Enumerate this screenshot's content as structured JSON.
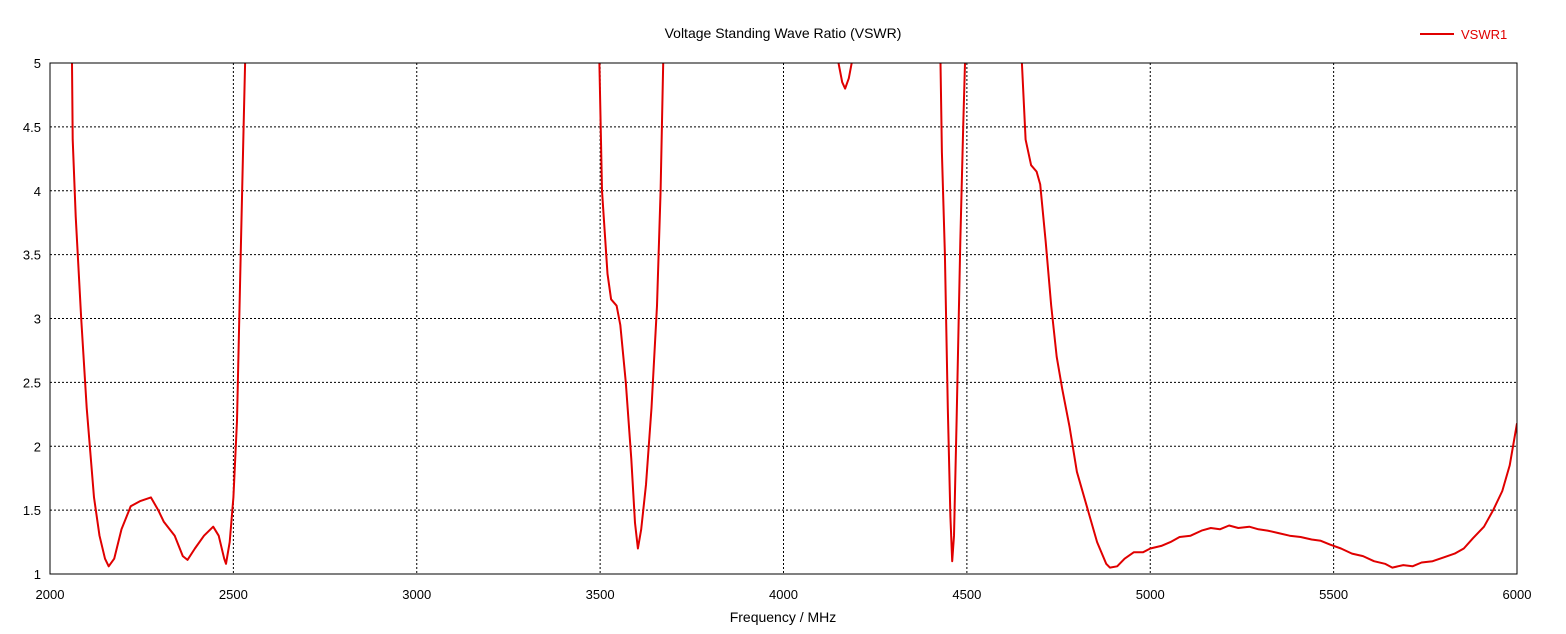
{
  "chart_data": {
    "type": "line",
    "title": "Voltage Standing Wave Ratio (VSWR)",
    "xlabel": "Frequency / MHz",
    "ylabel": "",
    "xlim": [
      2000,
      6000
    ],
    "ylim": [
      1,
      5
    ],
    "xticks": [
      2000,
      2500,
      3000,
      3500,
      4000,
      4500,
      5000,
      5500,
      6000
    ],
    "yticks": [
      1,
      1.5,
      2,
      2.5,
      3,
      3.5,
      4,
      4.5,
      5
    ],
    "xtick_labels": [
      "2000",
      "2500",
      "3000",
      "3500",
      "4000",
      "4500",
      "5000",
      "5500",
      "6000"
    ],
    "ytick_labels": [
      "1",
      "1.5",
      "2",
      "2.5",
      "3",
      "3.5",
      "4",
      "4.5",
      "5"
    ],
    "grid": true,
    "legend_position": "top-right",
    "series": [
      {
        "name": "VSWR1",
        "color": "#e00000",
        "segments": [
          [
            [
              2060,
              5
            ],
            [
              2062,
              4.4
            ],
            [
              2070,
              3.8
            ],
            [
              2085,
              3.0
            ],
            [
              2100,
              2.3
            ],
            [
              2120,
              1.6
            ],
            [
              2135,
              1.3
            ],
            [
              2150,
              1.12
            ],
            [
              2160,
              1.06
            ],
            [
              2175,
              1.12
            ],
            [
              2195,
              1.35
            ],
            [
              2220,
              1.53
            ],
            [
              2245,
              1.57
            ],
            [
              2275,
              1.6
            ],
            [
              2295,
              1.5
            ],
            [
              2310,
              1.41
            ],
            [
              2340,
              1.3
            ],
            [
              2362,
              1.14
            ],
            [
              2375,
              1.11
            ],
            [
              2395,
              1.2
            ],
            [
              2420,
              1.3
            ],
            [
              2445,
              1.37
            ],
            [
              2460,
              1.3
            ],
            [
              2475,
              1.12
            ],
            [
              2480,
              1.08
            ],
            [
              2490,
              1.25
            ],
            [
              2500,
              1.6
            ],
            [
              2510,
              2.2
            ],
            [
              2520,
              3.5
            ],
            [
              2528,
              4.5
            ],
            [
              2532,
              5
            ]
          ],
          [
            [
              3498,
              5
            ],
            [
              3505,
              4.0
            ],
            [
              3520,
              3.35
            ],
            [
              3530,
              3.15
            ],
            [
              3545,
              3.1
            ],
            [
              3555,
              2.95
            ],
            [
              3570,
              2.5
            ],
            [
              3585,
              1.9
            ],
            [
              3595,
              1.4
            ],
            [
              3603,
              1.2
            ],
            [
              3612,
              1.35
            ],
            [
              3625,
              1.7
            ],
            [
              3640,
              2.3
            ],
            [
              3655,
              3.1
            ],
            [
              3665,
              4.0
            ],
            [
              3672,
              5
            ]
          ],
          [
            [
              4150,
              5
            ],
            [
              4160,
              4.85
            ],
            [
              4168,
              4.8
            ],
            [
              4178,
              4.88
            ],
            [
              4186,
              5
            ]
          ],
          [
            [
              4428,
              5
            ],
            [
              4432,
              4.3
            ],
            [
              4440,
              3.5
            ],
            [
              4448,
              2.3
            ],
            [
              4455,
              1.45
            ],
            [
              4460,
              1.1
            ],
            [
              4465,
              1.3
            ],
            [
              4472,
              2.2
            ],
            [
              4482,
              3.6
            ],
            [
              4490,
              4.5
            ],
            [
              4495,
              5
            ]
          ],
          [
            [
              4650,
              5
            ],
            [
              4660,
              4.4
            ],
            [
              4675,
              4.2
            ],
            [
              4690,
              4.15
            ],
            [
              4700,
              4.05
            ],
            [
              4715,
              3.6
            ],
            [
              4730,
              3.1
            ],
            [
              4745,
              2.7
            ],
            [
              4760,
              2.45
            ],
            [
              4780,
              2.15
            ],
            [
              4800,
              1.8
            ],
            [
              4830,
              1.5
            ],
            [
              4855,
              1.25
            ],
            [
              4880,
              1.08
            ],
            [
              4890,
              1.05
            ],
            [
              4910,
              1.06
            ],
            [
              4930,
              1.12
            ],
            [
              4955,
              1.17
            ],
            [
              4980,
              1.17
            ],
            [
              5000,
              1.2
            ],
            [
              5030,
              1.22
            ],
            [
              5055,
              1.25
            ],
            [
              5080,
              1.29
            ],
            [
              5110,
              1.3
            ],
            [
              5140,
              1.34
            ],
            [
              5165,
              1.36
            ],
            [
              5190,
              1.35
            ],
            [
              5215,
              1.38
            ],
            [
              5240,
              1.36
            ],
            [
              5270,
              1.37
            ],
            [
              5295,
              1.35
            ],
            [
              5320,
              1.34
            ],
            [
              5350,
              1.32
            ],
            [
              5380,
              1.3
            ],
            [
              5410,
              1.29
            ],
            [
              5440,
              1.27
            ],
            [
              5465,
              1.26
            ],
            [
              5490,
              1.23
            ],
            [
              5520,
              1.2
            ],
            [
              5550,
              1.16
            ],
            [
              5580,
              1.14
            ],
            [
              5610,
              1.1
            ],
            [
              5640,
              1.08
            ],
            [
              5660,
              1.05
            ],
            [
              5690,
              1.07
            ],
            [
              5715,
              1.06
            ],
            [
              5740,
              1.09
            ],
            [
              5770,
              1.1
            ],
            [
              5800,
              1.13
            ],
            [
              5830,
              1.16
            ],
            [
              5855,
              1.2
            ],
            [
              5880,
              1.28
            ],
            [
              5910,
              1.37
            ],
            [
              5935,
              1.5
            ],
            [
              5960,
              1.65
            ],
            [
              5980,
              1.85
            ],
            [
              6000,
              2.18
            ]
          ]
        ]
      }
    ]
  }
}
